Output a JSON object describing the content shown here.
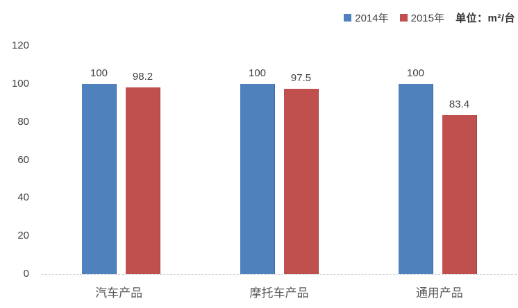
{
  "chart_data": {
    "type": "bar",
    "title": "",
    "categories": [
      "汽车产品",
      "摩托车产品",
      "通用产品"
    ],
    "series": [
      {
        "name": "2014年",
        "color": "#4F81BD",
        "border": "#3d6ba3",
        "values": [
          100,
          100,
          100
        ]
      },
      {
        "name": "2015年",
        "color": "#C0504D",
        "border": "#a8403e",
        "values": [
          98.2,
          97.5,
          83.4
        ]
      }
    ],
    "unit_label": "单位：m²/台",
    "xlabel": "",
    "ylabel": "",
    "ylim": [
      0,
      120
    ],
    "yticks": [
      0,
      20,
      40,
      60,
      80,
      100,
      120
    ],
    "grid": false,
    "legend_position": "top-right",
    "baseline_style": "dashed",
    "value_labels_shown": true,
    "colors": {
      "tick_text": "#404040",
      "value_text": "#404040",
      "category_text": "#595959",
      "baseline": "#c9c9c9",
      "background": "#ffffff"
    }
  }
}
